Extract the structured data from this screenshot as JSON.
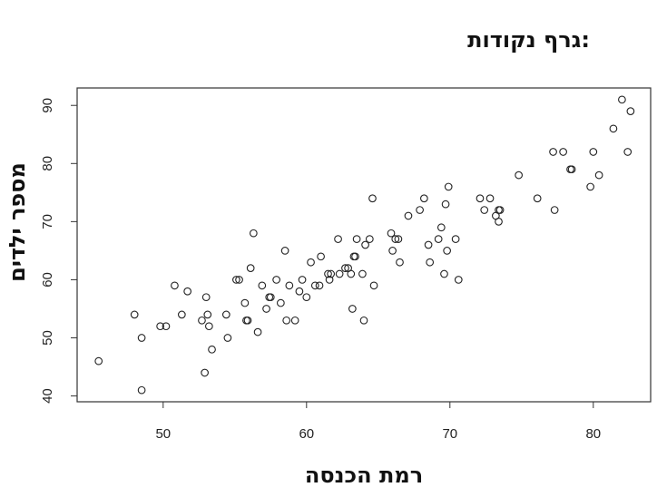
{
  "chart_data": {
    "type": "scatter",
    "title": "גרף נקודות:",
    "xlabel": "רמת הכנסה",
    "ylabel": "מספר ילדים",
    "xlim": [
      44,
      84
    ],
    "ylim": [
      39,
      93
    ],
    "x_ticks": [
      50,
      60,
      70,
      80
    ],
    "y_ticks": [
      40,
      50,
      60,
      70,
      80,
      90
    ],
    "grid": false,
    "marker": "open-circle",
    "points": [
      [
        45.5,
        46
      ],
      [
        48,
        54
      ],
      [
        48.5,
        50
      ],
      [
        48.5,
        41
      ],
      [
        49.8,
        52
      ],
      [
        50.2,
        52
      ],
      [
        50.8,
        59
      ],
      [
        51.3,
        54
      ],
      [
        51.7,
        58
      ],
      [
        52.7,
        53
      ],
      [
        52.9,
        44
      ],
      [
        53,
        57
      ],
      [
        53.1,
        54
      ],
      [
        53.2,
        52
      ],
      [
        53.4,
        48
      ],
      [
        54.4,
        54
      ],
      [
        54.5,
        50
      ],
      [
        55.1,
        60
      ],
      [
        55.3,
        60
      ],
      [
        55.7,
        56
      ],
      [
        55.8,
        53
      ],
      [
        55.9,
        53
      ],
      [
        56.1,
        62
      ],
      [
        56.3,
        68
      ],
      [
        56.6,
        51
      ],
      [
        56.9,
        59
      ],
      [
        57.2,
        55
      ],
      [
        57.4,
        57
      ],
      [
        57.5,
        57
      ],
      [
        57.9,
        60
      ],
      [
        58.2,
        56
      ],
      [
        58.5,
        65
      ],
      [
        58.6,
        53
      ],
      [
        58.8,
        59
      ],
      [
        59.2,
        53
      ],
      [
        59.5,
        58
      ],
      [
        59.7,
        60
      ],
      [
        60,
        57
      ],
      [
        60.3,
        63
      ],
      [
        60.6,
        59
      ],
      [
        60.9,
        59
      ],
      [
        61,
        64
      ],
      [
        61.5,
        61
      ],
      [
        61.6,
        60
      ],
      [
        61.7,
        61
      ],
      [
        62.2,
        67
      ],
      [
        62.3,
        61
      ],
      [
        62.7,
        62
      ],
      [
        62.9,
        62
      ],
      [
        63.1,
        61
      ],
      [
        63.2,
        55
      ],
      [
        63.3,
        64
      ],
      [
        63.4,
        64
      ],
      [
        63.5,
        67
      ],
      [
        63.9,
        61
      ],
      [
        64,
        53
      ],
      [
        64.1,
        66
      ],
      [
        64.4,
        67
      ],
      [
        64.6,
        74
      ],
      [
        64.7,
        59
      ],
      [
        65.9,
        68
      ],
      [
        66,
        65
      ],
      [
        66.2,
        67
      ],
      [
        66.4,
        67
      ],
      [
        66.5,
        63
      ],
      [
        67.1,
        71
      ],
      [
        67.9,
        72
      ],
      [
        68.2,
        74
      ],
      [
        68.5,
        66
      ],
      [
        68.6,
        63
      ],
      [
        69.2,
        67
      ],
      [
        69.4,
        69
      ],
      [
        69.6,
        61
      ],
      [
        69.7,
        73
      ],
      [
        69.8,
        65
      ],
      [
        69.9,
        76
      ],
      [
        70.4,
        67
      ],
      [
        70.6,
        60
      ],
      [
        72.1,
        74
      ],
      [
        72.4,
        72
      ],
      [
        72.8,
        74
      ],
      [
        73.2,
        71
      ],
      [
        73.4,
        72
      ],
      [
        73.4,
        70
      ],
      [
        73.5,
        72
      ],
      [
        74.8,
        78
      ],
      [
        76.1,
        74
      ],
      [
        77.2,
        82
      ],
      [
        77.3,
        72
      ],
      [
        77.9,
        82
      ],
      [
        78.4,
        79
      ],
      [
        78.5,
        79
      ],
      [
        79.8,
        76
      ],
      [
        80,
        82
      ],
      [
        80.4,
        78
      ],
      [
        81.4,
        86
      ],
      [
        82,
        91
      ],
      [
        82.4,
        82
      ],
      [
        82.6,
        89
      ]
    ]
  }
}
